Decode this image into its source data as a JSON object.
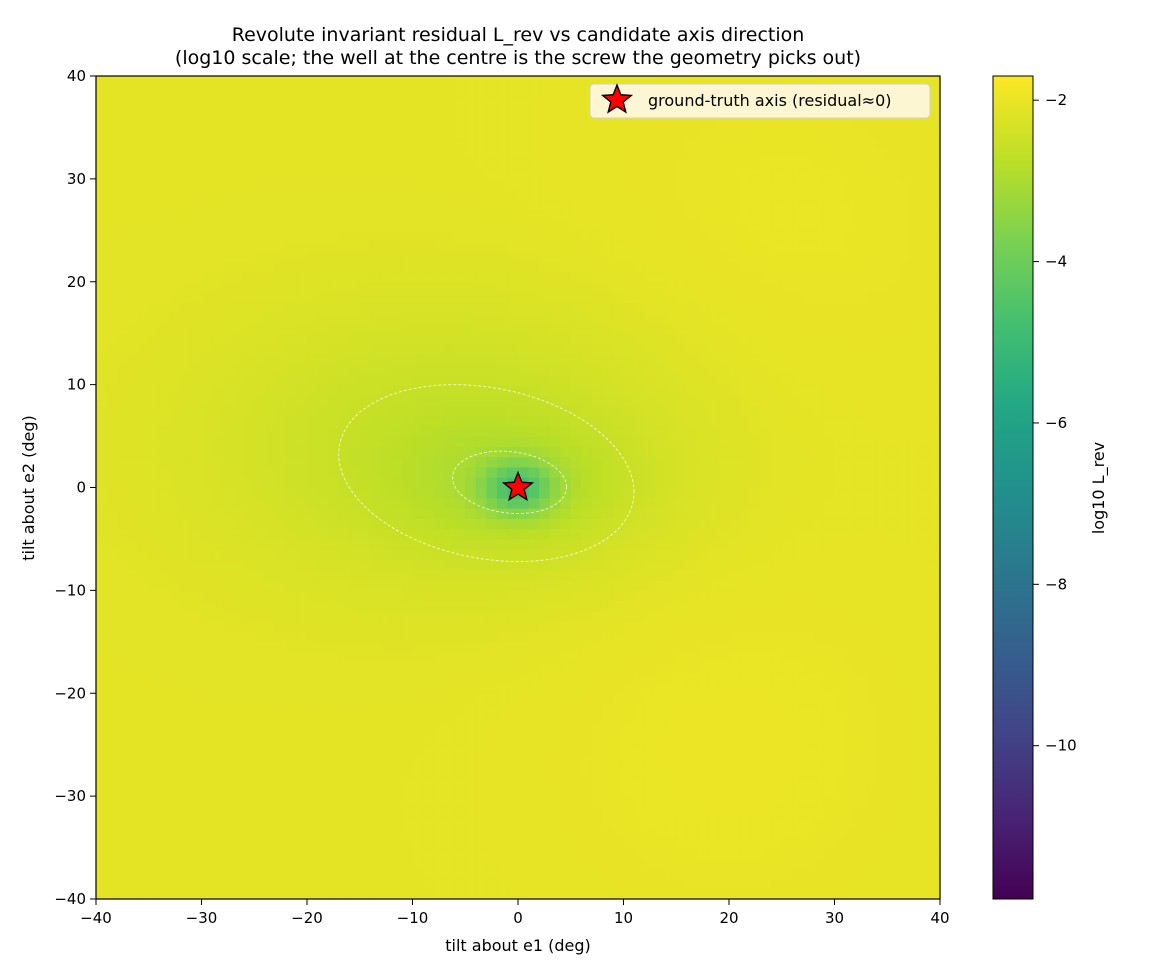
{
  "chart_data": {
    "type": "heatmap",
    "title_lines": [
      "Revolute invariant residual  L_rev  vs candidate axis direction",
      "(log10 scale; the well at the centre is the screw the geometry picks out)"
    ],
    "xlabel": "tilt about e1  (deg)",
    "ylabel": "tilt about e2  (deg)",
    "xlim": [
      -40,
      40
    ],
    "ylim": [
      -40,
      40
    ],
    "xticks": [
      -40,
      -30,
      -20,
      -10,
      0,
      10,
      20,
      30,
      40
    ],
    "yticks": [
      -40,
      -30,
      -20,
      -10,
      0,
      10,
      20,
      30,
      40
    ],
    "colorbar": {
      "label": "log10 L_rev",
      "range": [
        -11.9,
        -1.7
      ],
      "ticks": [
        -2,
        -4,
        -6,
        -8,
        -10
      ],
      "tick_labels": [
        "−2",
        "−4",
        "−6",
        "−8",
        "−10"
      ],
      "colormap": "viridis"
    },
    "tick_labels": {
      "x": [
        "−40",
        "−30",
        "−20",
        "−10",
        "0",
        "10",
        "20",
        "30",
        "40"
      ],
      "y": [
        "−40",
        "−30",
        "−20",
        "−10",
        "0",
        "10",
        "20",
        "30",
        "40"
      ]
    },
    "surface_description_values": {
      "background_level": -2.1,
      "minimum_level": -5.2,
      "minimum_location": [
        0,
        0
      ]
    },
    "contour_levels": [
      -3.0,
      -4.0
    ],
    "marker": {
      "label": "ground-truth axis (residual≈0)",
      "x": 0,
      "y": 0,
      "shape": "star",
      "color": "#ff0000"
    },
    "legend_position": "top-right",
    "grid": false
  }
}
